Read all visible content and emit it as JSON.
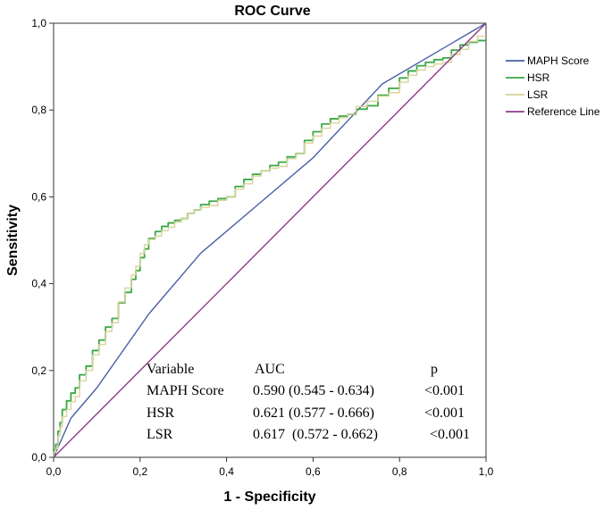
{
  "chart_data": {
    "type": "line",
    "title": "ROC Curve",
    "xlabel": "1 - Specificity",
    "ylabel": "Sensitivity",
    "xlim": [
      0,
      1
    ],
    "ylim": [
      0,
      1
    ],
    "xticks": [
      "0,0",
      "0,2",
      "0,4",
      "0,6",
      "0,8",
      "1,0"
    ],
    "yticks": [
      "0,0",
      "0,2",
      "0,4",
      "0,6",
      "0,8",
      "1,0"
    ],
    "grid": false,
    "legend_position": "right",
    "series": [
      {
        "name": "MAPH Score",
        "color": "#4a5fa8",
        "points": [
          [
            0,
            0
          ],
          [
            0.04,
            0.09
          ],
          [
            0.1,
            0.16
          ],
          [
            0.22,
            0.33
          ],
          [
            0.34,
            0.47
          ],
          [
            0.47,
            0.58
          ],
          [
            0.6,
            0.69
          ],
          [
            0.76,
            0.86
          ],
          [
            1,
            1
          ]
        ]
      },
      {
        "name": "HSR",
        "color": "#3aa845",
        "points": [
          [
            0,
            0
          ],
          [
            0.01,
            0.03
          ],
          [
            0.02,
            0.08
          ],
          [
            0.04,
            0.13
          ],
          [
            0.06,
            0.16
          ],
          [
            0.09,
            0.21
          ],
          [
            0.12,
            0.27
          ],
          [
            0.15,
            0.32
          ],
          [
            0.18,
            0.38
          ],
          [
            0.2,
            0.43
          ],
          [
            0.22,
            0.48
          ],
          [
            0.25,
            0.52
          ],
          [
            0.28,
            0.54
          ],
          [
            0.31,
            0.55
          ],
          [
            0.34,
            0.57
          ],
          [
            0.38,
            0.59
          ],
          [
            0.42,
            0.6
          ],
          [
            0.46,
            0.64
          ],
          [
            0.5,
            0.66
          ],
          [
            0.54,
            0.68
          ],
          [
            0.58,
            0.7
          ],
          [
            0.62,
            0.75
          ],
          [
            0.66,
            0.78
          ],
          [
            0.7,
            0.79
          ],
          [
            0.75,
            0.81
          ],
          [
            0.8,
            0.85
          ],
          [
            0.84,
            0.89
          ],
          [
            0.88,
            0.91
          ],
          [
            0.92,
            0.92
          ],
          [
            0.96,
            0.95
          ],
          [
            1,
            0.96
          ]
        ]
      },
      {
        "name": "LSR",
        "color": "#d8d49a",
        "points": [
          [
            0,
            0
          ],
          [
            0.01,
            0.02
          ],
          [
            0.02,
            0.07
          ],
          [
            0.04,
            0.11
          ],
          [
            0.06,
            0.14
          ],
          [
            0.09,
            0.2
          ],
          [
            0.12,
            0.26
          ],
          [
            0.15,
            0.31
          ],
          [
            0.18,
            0.39
          ],
          [
            0.2,
            0.44
          ],
          [
            0.22,
            0.49
          ],
          [
            0.25,
            0.51
          ],
          [
            0.28,
            0.53
          ],
          [
            0.31,
            0.55
          ],
          [
            0.34,
            0.57
          ],
          [
            0.38,
            0.58
          ],
          [
            0.42,
            0.6
          ],
          [
            0.46,
            0.63
          ],
          [
            0.5,
            0.66
          ],
          [
            0.54,
            0.67
          ],
          [
            0.58,
            0.7
          ],
          [
            0.62,
            0.74
          ],
          [
            0.66,
            0.77
          ],
          [
            0.7,
            0.79
          ],
          [
            0.75,
            0.82
          ],
          [
            0.8,
            0.84
          ],
          [
            0.84,
            0.88
          ],
          [
            0.88,
            0.9
          ],
          [
            0.92,
            0.91
          ],
          [
            0.96,
            0.94
          ],
          [
            1,
            0.97
          ]
        ]
      },
      {
        "name": "Reference Line",
        "color": "#8e3a8c",
        "points": [
          [
            0,
            0
          ],
          [
            1,
            1
          ]
        ]
      }
    ],
    "annotation_table": {
      "headers": [
        "Variable",
        "AUC",
        "p"
      ],
      "rows": [
        [
          "MAPH Score",
          "0.590 (0.545 - 0.634)",
          "<0.001"
        ],
        [
          "HSR",
          "0.621 (0.577 - 0.666)",
          "<0.001"
        ],
        [
          "LSR",
          "0.617  (0.572 - 0.662)",
          "<0.001"
        ]
      ]
    }
  }
}
